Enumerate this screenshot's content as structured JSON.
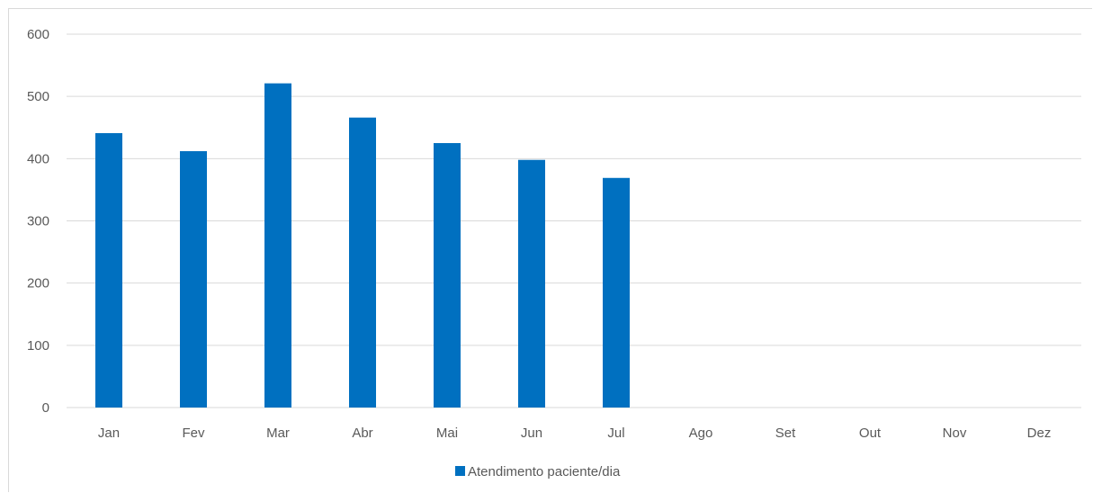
{
  "chart_data": {
    "type": "bar",
    "title": "",
    "xlabel": "",
    "ylabel": "",
    "categories": [
      "Jan",
      "Fev",
      "Mar",
      "Abr",
      "Mai",
      "Jun",
      "Jul",
      "Ago",
      "Set",
      "Out",
      "Nov",
      "Dez"
    ],
    "series": [
      {
        "name": "Atendimento paciente/dia",
        "values": [
          441,
          412,
          521,
          466,
          425,
          398,
          369,
          null,
          null,
          null,
          null,
          null
        ],
        "color": "#0070C0"
      }
    ],
    "ylim": [
      0,
      600
    ],
    "yticks": [
      0,
      100,
      200,
      300,
      400,
      500,
      600
    ],
    "grid": true,
    "legend_position": "bottom",
    "gridline_color": "#d9d9d9",
    "label_color": "#595959"
  }
}
